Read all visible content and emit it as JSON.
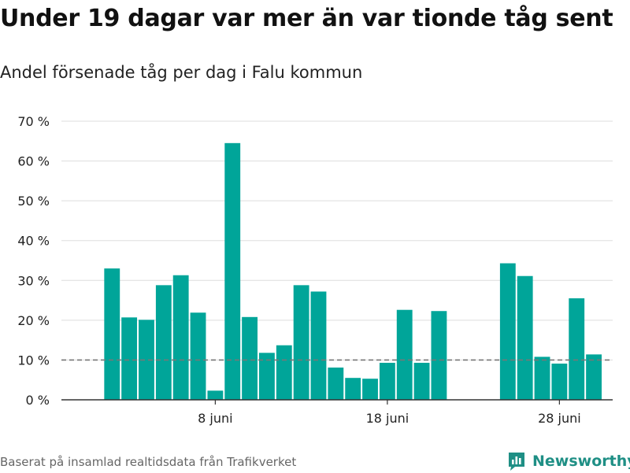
{
  "header": {
    "title": "Under 19 dagar var mer än var tionde tåg sent",
    "subtitle": "Andel försenade tåg per dag i Falu kommun"
  },
  "footer": {
    "source": "Baserat på insamlad realtidsdata från Trafikverket",
    "brand": "Newsworthy"
  },
  "colors": {
    "bar": "#00a599",
    "grid": "#dddddd",
    "axis": "#333333",
    "reference_line": "#777777",
    "brand": "#1f8f85"
  },
  "chart_data": {
    "type": "bar",
    "title": "Under 19 dagar var mer än var tionde tåg sent",
    "subtitle": "Andel försenade tåg per dag i Falu kommun",
    "xlabel": "",
    "ylabel": "",
    "x_unit": "day of June",
    "categories": [
      1,
      2,
      3,
      4,
      5,
      6,
      7,
      8,
      9,
      10,
      11,
      12,
      13,
      14,
      15,
      16,
      17,
      18,
      19,
      20,
      21,
      22,
      23,
      24,
      25,
      26,
      27,
      28,
      29,
      30
    ],
    "values": [
      null,
      33.0,
      20.7,
      20.1,
      28.8,
      31.3,
      21.9,
      2.3,
      64.5,
      20.8,
      11.8,
      13.7,
      28.8,
      27.2,
      8.1,
      5.5,
      5.3,
      9.3,
      22.6,
      9.3,
      22.3,
      null,
      null,
      null,
      34.3,
      31.1,
      10.8,
      9.1,
      25.5,
      11.4
    ],
    "ylim": [
      0,
      70
    ],
    "yticks": [
      0,
      10,
      20,
      30,
      40,
      50,
      60,
      70
    ],
    "ytick_labels": [
      "0 %",
      "10 %",
      "20 %",
      "30 %",
      "40 %",
      "50 %",
      "60 %",
      "70 %"
    ],
    "xticks": [
      8,
      18,
      28
    ],
    "xtick_labels": [
      "8 juni",
      "18 juni",
      "28 juni"
    ],
    "reference_line": {
      "value": 10,
      "style": "dashed"
    },
    "grid": true,
    "legend": "none"
  }
}
